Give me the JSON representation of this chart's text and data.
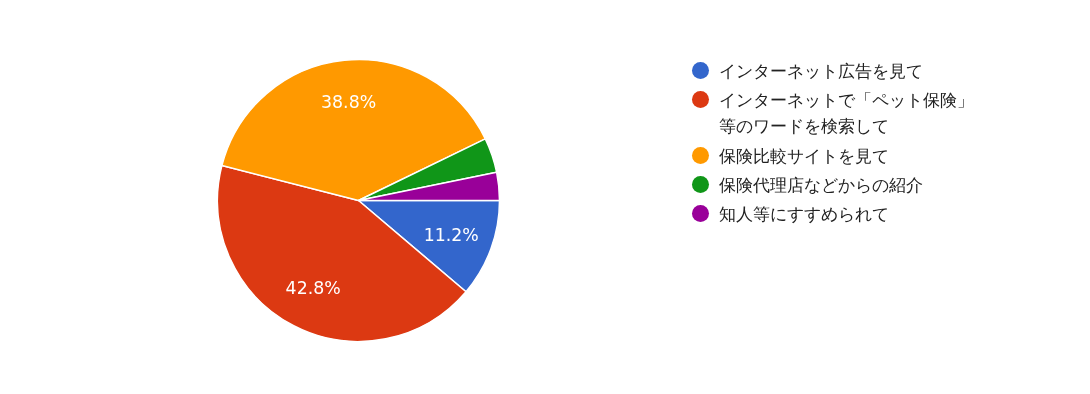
{
  "chart_data": {
    "type": "pie",
    "categories": [
      "インターネット広告を見て",
      "インターネットで「ペット保険」等のワードを検索して",
      "保険比較サイトを見て",
      "保険代理店などからの紹介",
      "知人等にすすめられて"
    ],
    "values": [
      11.2,
      42.8,
      38.8,
      4.0,
      3.2
    ],
    "colors": [
      "#3366cc",
      "#dc3912",
      "#ff9900",
      "#109618",
      "#990099"
    ],
    "value_labels": [
      "11.2%",
      "42.8%",
      "38.8%",
      null,
      null
    ],
    "legend": "right"
  }
}
